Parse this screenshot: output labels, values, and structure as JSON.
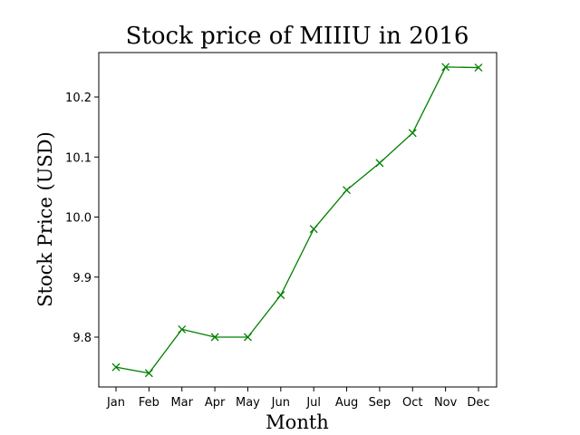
{
  "chart_data": {
    "type": "line",
    "title": "Stock price of MIIIU in 2016",
    "xlabel": "Month",
    "ylabel": "Stock Price (USD)",
    "categories": [
      "Jan",
      "Feb",
      "Mar",
      "Apr",
      "May",
      "Jun",
      "Jul",
      "Aug",
      "Sep",
      "Oct",
      "Nov",
      "Dec"
    ],
    "series": [
      {
        "values": [
          9.75,
          9.74,
          9.813,
          9.8,
          9.8,
          9.87,
          9.98,
          10.045,
          10.09,
          10.14,
          10.25,
          10.249
        ],
        "color": "#008000",
        "marker": "x"
      }
    ],
    "ylim": [
      9.717,
      10.274
    ],
    "yticks": [
      9.8,
      9.9,
      10.0,
      10.1,
      10.2
    ],
    "ytick_labels": [
      "9.8",
      "9.9",
      "10.0",
      "10.1",
      "10.2"
    ],
    "grid": false,
    "legend": "none"
  }
}
